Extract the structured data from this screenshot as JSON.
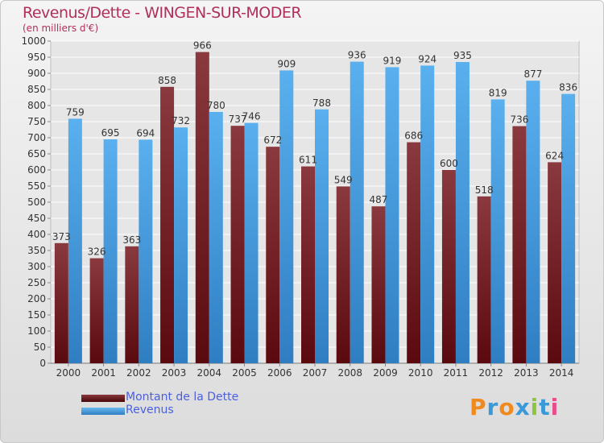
{
  "header": {
    "title": "Revenus/Dette - WINGEN-SUR-MODER",
    "subtitle": "(en milliers d'€)"
  },
  "legend": {
    "items": [
      {
        "label": "Montant de la Dette",
        "color": "#7a1c22"
      },
      {
        "label": "Revenus",
        "color": "#4aa3e8"
      }
    ]
  },
  "logo": {
    "text": "Proxiti"
  },
  "colors": {
    "dette_top": "#8a3a3e",
    "dette_bottom": "#5a0a0e",
    "revenus_top": "#5ab0ee",
    "revenus_bottom": "#2f7ec2",
    "title": "#b0305a",
    "legend_text": "#4a5fe0"
  },
  "chart_data": {
    "type": "bar",
    "categories": [
      "2000",
      "2001",
      "2002",
      "2003",
      "2004",
      "2005",
      "2006",
      "2007",
      "2008",
      "2009",
      "2010",
      "2011",
      "2012",
      "2013",
      "2014"
    ],
    "series": [
      {
        "name": "Montant de la Dette",
        "values": [
          373,
          326,
          363,
          858,
          966,
          737,
          672,
          611,
          549,
          487,
          686,
          600,
          518,
          736,
          624
        ]
      },
      {
        "name": "Revenus",
        "values": [
          759,
          695,
          694,
          732,
          780,
          746,
          909,
          788,
          936,
          919,
          924,
          935,
          819,
          877,
          836
        ]
      }
    ],
    "yticks": [
      0,
      50,
      100,
      150,
      200,
      250,
      300,
      350,
      400,
      450,
      500,
      550,
      600,
      650,
      700,
      750,
      800,
      850,
      900,
      950,
      1000
    ],
    "ylim": [
      0,
      1000
    ],
    "grid": true,
    "legend_position": "bottom-left"
  }
}
